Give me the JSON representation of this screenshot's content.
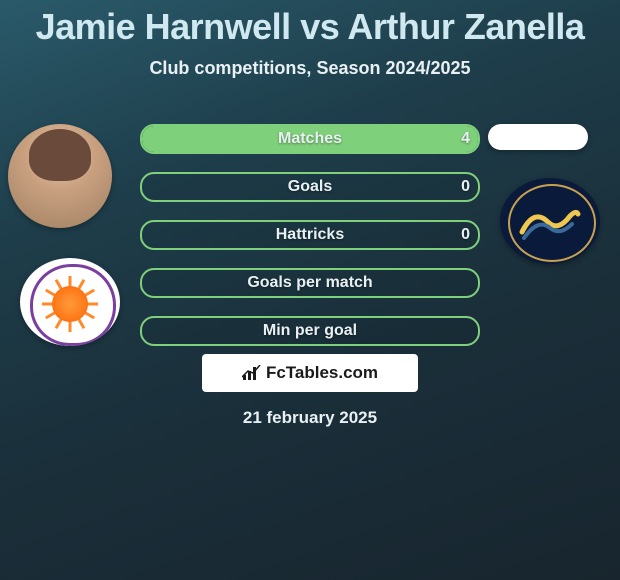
{
  "title": "Jamie Harnwell vs Arthur Zanella",
  "subtitle": "Club competitions, Season 2024/2025",
  "date": "21 february 2025",
  "fctables": "FcTables.com",
  "colors": {
    "title": "#d0e8ef",
    "text": "#e8f0f3",
    "stat_border": "#7fd07a",
    "stat_fill": "#7fd07a",
    "background_gradient": [
      "#2a5a6a",
      "#1e3d4a",
      "#1a2f3a",
      "#18252e"
    ],
    "box_white": "#ffffff",
    "badge_left_border": "#7a3fa0",
    "badge_left_sun": "#ff8a2a",
    "badge_right_bg": "#0a1a3a",
    "badge_right_ring": "#c8a050",
    "badge_right_wave": "#f0c850"
  },
  "stats": [
    {
      "label": "Matches",
      "value_left": "4",
      "fill_left_pct": 100
    },
    {
      "label": "Goals",
      "value_left": "0",
      "fill_left_pct": 0
    },
    {
      "label": "Hattricks",
      "value_left": "0",
      "fill_left_pct": 0
    },
    {
      "label": "Goals per match",
      "value_left": "",
      "fill_left_pct": 0
    },
    {
      "label": "Min per goal",
      "value_left": "",
      "fill_left_pct": 0
    }
  ],
  "player1": {
    "name": "Jamie Harnwell",
    "club": "Perth Glory"
  },
  "player2": {
    "name": "Arthur Zanella",
    "club": "Central Coast Mariners"
  }
}
